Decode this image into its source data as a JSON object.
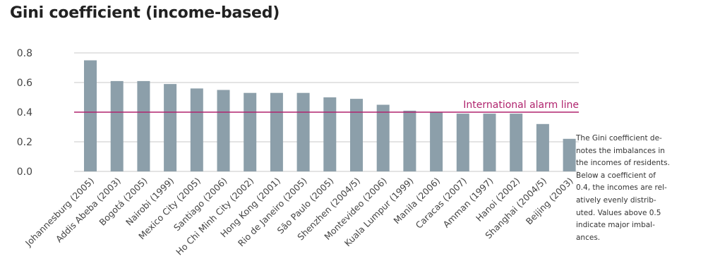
{
  "chart_data": {
    "type": "bar",
    "title": "Gini coefficient (income-based)",
    "categories": [
      "Johannesburg (2005)",
      "Addis Abeba (2003)",
      "Bogotá (2005)",
      "Nairobi (1999)",
      "Mexico City (2005)",
      "Santiago (2006)",
      "Ho Chi Minh City (2002)",
      "Hong Kong (2001)",
      "Rio de Janeiro (2005)",
      "São Paulo (2005)",
      "Shenzhen (2004/5)",
      "Montevideo (2006)",
      "Kuala Lumpur (1999)",
      "Manila (2006)",
      "Caracas (2007)",
      "Amman (1997)",
      "Hanoi (2002)",
      "Shanghai (2004/5)",
      "Beijing (2003)"
    ],
    "values": [
      0.75,
      0.61,
      0.61,
      0.59,
      0.56,
      0.55,
      0.53,
      0.53,
      0.53,
      0.5,
      0.49,
      0.45,
      0.41,
      0.4,
      0.39,
      0.39,
      0.39,
      0.32,
      0.22
    ],
    "ylim": [
      0,
      0.8
    ],
    "yticks": [
      "0.0",
      "0.2",
      "0.4",
      "0.6",
      "0.8"
    ],
    "ytick_values": [
      0,
      0.2,
      0.4,
      0.6,
      0.8
    ],
    "grid": true,
    "reference_line": {
      "value": 0.4,
      "label": "International alarm line",
      "color": "#b0246e"
    },
    "bar_color": "#8c9faa",
    "note": "The Gini coefficient de-\nnotes the imbalances in\nthe incomes of residents.\nBelow a coefficient of\n0.4, the incomes are rel-\natively evenly distrib-\nuted. Values above 0.5\nindicate major imbal-\nances."
  }
}
